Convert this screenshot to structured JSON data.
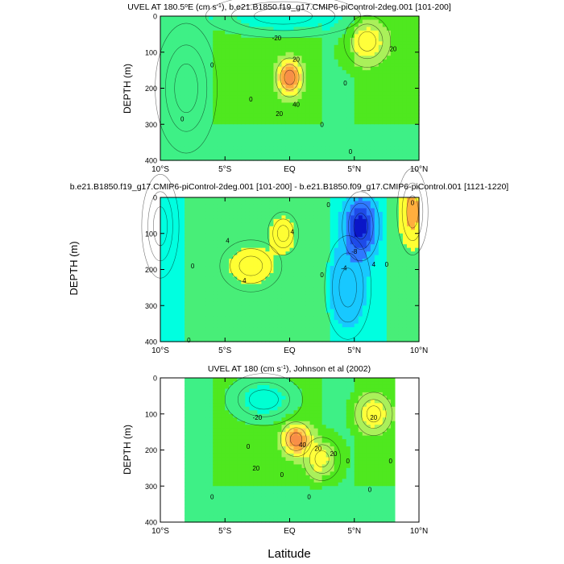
{
  "figure": {
    "xlabel": "Latitude",
    "shared_ylabel": "DEPTH (m)"
  },
  "colors": {
    "levels_mean": [
      -30,
      -20,
      -10,
      0,
      10,
      20,
      30,
      40,
      50,
      60
    ],
    "palette_mean": [
      "#00c8ff",
      "#34e6f2",
      "#00ffd2",
      "#3ef086",
      "#4fe81f",
      "#aaf05a",
      "#ffff3a",
      "#ffd257",
      "#ffa83e",
      "#f88f47",
      "#ff6a30"
    ],
    "levels_diff": [
      -16,
      -12,
      -8,
      -4,
      0,
      4,
      8
    ],
    "palette_diff": [
      "#0a16c8",
      "#1e4ae8",
      "#2f79ff",
      "#18c8ff",
      "#00ffe0",
      "#48ee78",
      "#ffff33",
      "#ffae3e"
    ]
  },
  "chart_data": [
    {
      "id": "panel-model",
      "type": "heatmap",
      "title": "UVEL AT 180.5°E (cm s⁻¹), b.e21.B1850.f19_g17.CMIP6-piControl-2deg.001 [101-200]",
      "title_parts": {
        "pre": "UVEL AT 180.5",
        "sup1": "o",
        "mid": "E (cm s",
        "sup2": "-1",
        "post": "), b.e21.B1850.f19_g17.CMIP6-piControl-2deg.001 [101-200]"
      },
      "xlabel": "",
      "ylabel": "DEPTH (m)",
      "xlim": [
        -10,
        10
      ],
      "ylim": [
        0,
        400
      ],
      "xticks": [
        -10,
        -5,
        0,
        5,
        10
      ],
      "xtick_labels": [
        "10°S",
        "5°S",
        "EQ",
        "5°N",
        "10°N"
      ],
      "yticks": [
        0,
        100,
        200,
        300,
        400
      ],
      "ytick_labels": [
        "0",
        "100",
        "200",
        "300",
        "400"
      ],
      "field": [
        {
          "lat": 0,
          "depth": 170,
          "value": 55,
          "width_lat": 0.9,
          "width_depth": 45
        },
        {
          "lat": 6,
          "depth": 70,
          "value": 25,
          "width_lat": 1.5,
          "width_depth": 60
        },
        {
          "lat": -0.5,
          "depth": 0,
          "value": -25,
          "width_lat": 5,
          "width_depth": 50
        },
        {
          "lat": -8,
          "depth": 200,
          "value": 0,
          "width_lat": 2,
          "width_depth": 150
        }
      ],
      "contour_labels": [
        {
          "text": "-20",
          "lat": -1,
          "depth": 60
        },
        {
          "text": "0",
          "lat": -6,
          "depth": 135
        },
        {
          "text": "20",
          "lat": 0.5,
          "depth": 120
        },
        {
          "text": "40",
          "lat": 0.5,
          "depth": 245
        },
        {
          "text": "20",
          "lat": -0.8,
          "depth": 270
        },
        {
          "text": "0",
          "lat": -3,
          "depth": 230
        },
        {
          "text": "0",
          "lat": -8.3,
          "depth": 285
        },
        {
          "text": "0",
          "lat": 4.3,
          "depth": 185
        },
        {
          "text": "0",
          "lat": 2.5,
          "depth": 300
        },
        {
          "text": "0",
          "lat": 4.7,
          "depth": 375
        },
        {
          "text": "20",
          "lat": 8,
          "depth": 90
        }
      ]
    },
    {
      "id": "panel-difference",
      "type": "heatmap",
      "title": "b.e21.B1850.f19_g17.CMIP6-piControl-2deg.001 [101-200] - b.e21.B1850.f09_g17.CMIP6-piControl.001 [1121-1220]",
      "xlabel": "",
      "ylabel": "",
      "xlim": [
        -10,
        10
      ],
      "ylim": [
        0,
        400
      ],
      "xticks": [
        -10,
        -5,
        0,
        5,
        10
      ],
      "xtick_labels": [
        "10°S",
        "5°S",
        "EQ",
        "5°N",
        "10°N"
      ],
      "yticks": [
        0,
        100,
        200,
        300,
        400
      ],
      "ytick_labels": [
        "0",
        "100",
        "200",
        "300",
        "400"
      ],
      "field": [
        {
          "lat": 5.5,
          "depth": 80,
          "value": -16,
          "width_lat": 1.2,
          "width_depth": 80
        },
        {
          "lat": 4.5,
          "depth": 250,
          "value": -6,
          "width_lat": 1.5,
          "width_depth": 120
        },
        {
          "lat": -3,
          "depth": 190,
          "value": 5,
          "width_lat": 2.0,
          "width_depth": 60
        },
        {
          "lat": -0.5,
          "depth": 100,
          "value": 6,
          "width_lat": 1.0,
          "width_depth": 50
        },
        {
          "lat": 9.5,
          "depth": 40,
          "value": 8,
          "width_lat": 1.0,
          "width_depth": 100
        },
        {
          "lat": -10,
          "depth": 80,
          "value": -3,
          "width_lat": 1.2,
          "width_depth": 120
        }
      ],
      "contour_labels": [
        {
          "text": "4",
          "lat": -4.8,
          "depth": 120
        },
        {
          "text": "0",
          "lat": -7.5,
          "depth": 190
        },
        {
          "text": "4",
          "lat": -3.5,
          "depth": 230
        },
        {
          "text": "4",
          "lat": 0.2,
          "depth": 95
        },
        {
          "text": "0",
          "lat": 3,
          "depth": 20
        },
        {
          "text": "-8",
          "lat": 5,
          "depth": 150
        },
        {
          "text": "-4",
          "lat": 4.2,
          "depth": 195
        },
        {
          "text": "4",
          "lat": 6.5,
          "depth": 185
        },
        {
          "text": "0",
          "lat": 7.5,
          "depth": 185
        },
        {
          "text": "0",
          "lat": 9.5,
          "depth": 15
        },
        {
          "text": "0",
          "lat": 2.5,
          "depth": 215
        },
        {
          "text": "0",
          "lat": -7.8,
          "depth": 395
        }
      ]
    },
    {
      "id": "panel-observed",
      "type": "heatmap",
      "title": "UVEL AT 180 (cm s⁻¹), Johnson et al (2002)",
      "title_parts": {
        "pre": "UVEL AT 180 (cm s",
        "sup": "-1",
        "post": "), Johnson et al (2002)"
      },
      "xlabel": "Latitude",
      "ylabel": "DEPTH (m)",
      "xlim": [
        -10,
        10
      ],
      "ylim": [
        0,
        400
      ],
      "data_lat_range": [
        -8,
        8
      ],
      "xticks": [
        -10,
        -5,
        0,
        5,
        10
      ],
      "xtick_labels": [
        "10°S",
        "5°S",
        "EQ",
        "5°N",
        "10°N"
      ],
      "yticks": [
        0,
        100,
        200,
        300,
        400
      ],
      "ytick_labels": [
        "0",
        "100",
        "200",
        "300",
        "400"
      ],
      "field": [
        {
          "lat": 0.5,
          "depth": 170,
          "value": 55,
          "width_lat": 1.0,
          "width_depth": 40
        },
        {
          "lat": 2.5,
          "depth": 225,
          "value": 25,
          "width_lat": 1.2,
          "width_depth": 50
        },
        {
          "lat": 6.5,
          "depth": 100,
          "value": 25,
          "width_lat": 1.2,
          "width_depth": 50
        },
        {
          "lat": -2,
          "depth": 60,
          "value": -22,
          "width_lat": 2.5,
          "width_depth": 60
        }
      ],
      "contour_labels": [
        {
          "text": "-20",
          "lat": -2.5,
          "depth": 110
        },
        {
          "text": "0",
          "lat": -3.2,
          "depth": 190
        },
        {
          "text": "40",
          "lat": 1.0,
          "depth": 185
        },
        {
          "text": "20",
          "lat": 2.2,
          "depth": 195
        },
        {
          "text": "20",
          "lat": 3.4,
          "depth": 210
        },
        {
          "text": "20",
          "lat": -2.6,
          "depth": 250
        },
        {
          "text": "0",
          "lat": -0.6,
          "depth": 268
        },
        {
          "text": "0",
          "lat": -6.0,
          "depth": 330
        },
        {
          "text": "0",
          "lat": 4.5,
          "depth": 230
        },
        {
          "text": "0",
          "lat": 6.2,
          "depth": 310
        },
        {
          "text": "0",
          "lat": 7.8,
          "depth": 230
        },
        {
          "text": "20",
          "lat": 6.5,
          "depth": 110
        },
        {
          "text": "0",
          "lat": 1.5,
          "depth": 330
        }
      ]
    }
  ]
}
